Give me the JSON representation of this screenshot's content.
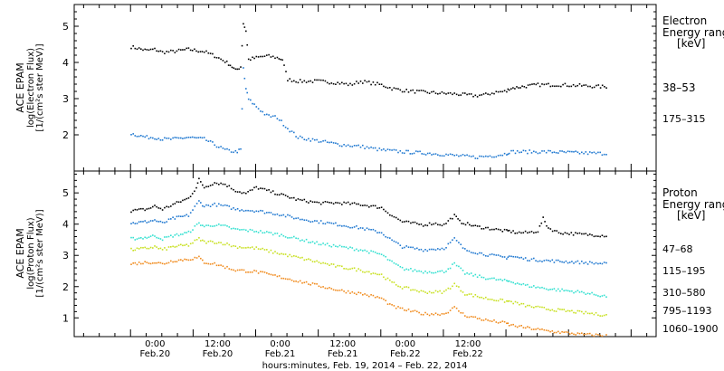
{
  "chart_data": [
    {
      "type": "scatter",
      "instrument": "ACE EPAM",
      "ylabel_line1": "log(Electron Flux)",
      "ylabel_line2": "[1/(cm²s ster MeV)]",
      "legend_title": "Electron",
      "legend_subtitle": "Energy range",
      "legend_units": "[keV]",
      "ylim": [
        1.0,
        5.6
      ],
      "yticks": [
        "2",
        "3",
        "4",
        "5"
      ],
      "series": [
        {
          "name": "38–53",
          "color": "#000000",
          "points": [
            [
              0.0,
              4.45
            ],
            [
              1.5,
              4.4
            ],
            [
              3.0,
              4.35
            ],
            [
              4.5,
              4.38
            ],
            [
              6.0,
              4.3
            ],
            [
              8.0,
              4.32
            ],
            [
              11.0,
              4.38
            ],
            [
              14.0,
              4.32
            ],
            [
              16.0,
              4.2
            ],
            [
              18.0,
              4.05
            ],
            [
              19.0,
              3.95
            ],
            [
              20.0,
              3.8
            ],
            [
              21.0,
              3.9
            ],
            [
              21.5,
              5.1
            ],
            [
              22.0,
              4.9
            ],
            [
              22.5,
              4.1
            ],
            [
              24.0,
              4.15
            ],
            [
              26.0,
              4.2
            ],
            [
              28.0,
              4.15
            ],
            [
              29.0,
              4.1
            ],
            [
              30.0,
              3.55
            ],
            [
              32.0,
              3.5
            ],
            [
              36.0,
              3.5
            ],
            [
              40.0,
              3.45
            ],
            [
              42.0,
              3.4
            ],
            [
              44.0,
              3.5
            ],
            [
              46.0,
              3.45
            ],
            [
              48.0,
              3.4
            ],
            [
              50.0,
              3.3
            ],
            [
              52.0,
              3.25
            ],
            [
              54.0,
              3.22
            ],
            [
              58.0,
              3.18
            ],
            [
              62.0,
              3.15
            ],
            [
              66.0,
              3.1
            ],
            [
              68.0,
              3.13
            ],
            [
              70.0,
              3.2
            ],
            [
              72.0,
              3.22
            ],
            [
              72.5,
              3.3
            ],
            [
              75.0,
              3.35
            ],
            [
              78.0,
              3.4
            ],
            [
              82.0,
              3.4
            ],
            [
              86.0,
              3.38
            ],
            [
              90.0,
              3.35
            ],
            [
              91.5,
              3.35
            ]
          ]
        },
        {
          "name": "175–315",
          "color": "#1f78d0",
          "points": [
            [
              0.0,
              2.05
            ],
            [
              1.5,
              2.0
            ],
            [
              3.0,
              1.95
            ],
            [
              4.5,
              1.95
            ],
            [
              6.0,
              1.9
            ],
            [
              8.0,
              1.9
            ],
            [
              11.0,
              1.95
            ],
            [
              14.0,
              1.9
            ],
            [
              16.0,
              1.75
            ],
            [
              18.0,
              1.6
            ],
            [
              20.0,
              1.55
            ],
            [
              21.0,
              1.6
            ],
            [
              21.5,
              3.85
            ],
            [
              22.0,
              3.3
            ],
            [
              22.5,
              3.0
            ],
            [
              24.0,
              2.8
            ],
            [
              26.0,
              2.55
            ],
            [
              28.0,
              2.5
            ],
            [
              30.0,
              2.2
            ],
            [
              32.0,
              1.95
            ],
            [
              36.0,
              1.85
            ],
            [
              40.0,
              1.75
            ],
            [
              44.0,
              1.7
            ],
            [
              48.0,
              1.6
            ],
            [
              52.0,
              1.55
            ],
            [
              58.0,
              1.5
            ],
            [
              62.0,
              1.45
            ],
            [
              66.0,
              1.4
            ],
            [
              70.0,
              1.45
            ],
            [
              72.0,
              1.5
            ],
            [
              72.5,
              1.55
            ],
            [
              76.0,
              1.55
            ],
            [
              80.0,
              1.55
            ],
            [
              86.0,
              1.52
            ],
            [
              91.5,
              1.5
            ]
          ]
        }
      ]
    },
    {
      "type": "scatter",
      "instrument": "ACE EPAM",
      "ylabel_line1": "log(Proton Flux)",
      "ylabel_line2": "[1/(cm²s ster MeV)]",
      "legend_title": "Proton",
      "legend_subtitle": "Energy range",
      "legend_units": "[keV]",
      "ylim": [
        0.4,
        5.7
      ],
      "yticks": [
        "1",
        "2",
        "3",
        "4",
        "5"
      ],
      "xticks": [
        {
          "time": "0:00",
          "date": "Feb.20"
        },
        {
          "time": "12:00",
          "date": "Feb.20"
        },
        {
          "time": "0:00",
          "date": "Feb.21"
        },
        {
          "time": "12:00",
          "date": "Feb.21"
        },
        {
          "time": "0:00",
          "date": "Feb.22"
        },
        {
          "time": "12:00",
          "date": "Feb.22"
        }
      ],
      "xlabel": "hours:minutes, Feb. 19, 2014 – Feb. 22, 2014",
      "series": [
        {
          "name": "47–68",
          "color": "#000000",
          "points": [
            [
              0.0,
              4.45
            ],
            [
              3.0,
              4.5
            ],
            [
              4.5,
              4.6
            ],
            [
              6.0,
              4.5
            ],
            [
              8.0,
              4.65
            ],
            [
              11.0,
              4.85
            ],
            [
              12.5,
              5.2
            ],
            [
              13.0,
              5.45
            ],
            [
              14.0,
              5.2
            ],
            [
              16.0,
              5.35
            ],
            [
              18.0,
              5.3
            ],
            [
              20.0,
              5.1
            ],
            [
              22.0,
              5.0
            ],
            [
              24.0,
              5.2
            ],
            [
              26.0,
              5.1
            ],
            [
              28.0,
              5.0
            ],
            [
              30.0,
              4.9
            ],
            [
              32.0,
              4.8
            ],
            [
              36.0,
              4.7
            ],
            [
              40.0,
              4.7
            ],
            [
              44.0,
              4.65
            ],
            [
              48.0,
              4.55
            ],
            [
              50.0,
              4.3
            ],
            [
              52.0,
              4.1
            ],
            [
              54.0,
              4.05
            ],
            [
              56.0,
              4.0
            ],
            [
              58.0,
              4.05
            ],
            [
              60.0,
              4.0
            ],
            [
              62.0,
              4.3
            ],
            [
              63.0,
              4.1
            ],
            [
              66.0,
              3.95
            ],
            [
              70.0,
              3.85
            ],
            [
              72.0,
              3.8
            ],
            [
              72.5,
              3.8
            ],
            [
              74.0,
              3.75
            ],
            [
              76.0,
              3.75
            ],
            [
              78.0,
              3.8
            ],
            [
              79.0,
              4.2
            ],
            [
              80.0,
              3.9
            ],
            [
              82.0,
              3.75
            ],
            [
              86.0,
              3.7
            ],
            [
              91.5,
              3.65
            ]
          ]
        },
        {
          "name": "115–195",
          "color": "#1f78d0",
          "points": [
            [
              0.0,
              4.05
            ],
            [
              3.0,
              4.1
            ],
            [
              4.5,
              4.15
            ],
            [
              6.0,
              4.05
            ],
            [
              8.0,
              4.2
            ],
            [
              11.0,
              4.3
            ],
            [
              13.0,
              4.75
            ],
            [
              14.0,
              4.6
            ],
            [
              16.0,
              4.65
            ],
            [
              18.0,
              4.6
            ],
            [
              20.0,
              4.5
            ],
            [
              24.0,
              4.45
            ],
            [
              28.0,
              4.35
            ],
            [
              32.0,
              4.2
            ],
            [
              36.0,
              4.1
            ],
            [
              40.0,
              4.0
            ],
            [
              44.0,
              3.9
            ],
            [
              48.0,
              3.75
            ],
            [
              50.0,
              3.5
            ],
            [
              52.0,
              3.3
            ],
            [
              56.0,
              3.2
            ],
            [
              60.0,
              3.25
            ],
            [
              62.0,
              3.55
            ],
            [
              64.0,
              3.2
            ],
            [
              68.0,
              3.05
            ],
            [
              72.0,
              2.95
            ],
            [
              72.5,
              3.0
            ],
            [
              76.0,
              2.9
            ],
            [
              80.0,
              2.85
            ],
            [
              86.0,
              2.8
            ],
            [
              91.5,
              2.75
            ]
          ]
        },
        {
          "name": "310–580",
          "color": "#33e0d0",
          "points": [
            [
              0.0,
              3.55
            ],
            [
              3.0,
              3.6
            ],
            [
              4.5,
              3.65
            ],
            [
              6.0,
              3.55
            ],
            [
              8.0,
              3.65
            ],
            [
              11.0,
              3.75
            ],
            [
              13.0,
              4.05
            ],
            [
              14.0,
              3.95
            ],
            [
              16.0,
              4.0
            ],
            [
              18.0,
              3.95
            ],
            [
              20.0,
              3.85
            ],
            [
              24.0,
              3.8
            ],
            [
              28.0,
              3.7
            ],
            [
              32.0,
              3.55
            ],
            [
              36.0,
              3.4
            ],
            [
              40.0,
              3.3
            ],
            [
              44.0,
              3.2
            ],
            [
              48.0,
              3.05
            ],
            [
              50.0,
              2.8
            ],
            [
              52.0,
              2.6
            ],
            [
              56.0,
              2.5
            ],
            [
              60.0,
              2.5
            ],
            [
              62.0,
              2.75
            ],
            [
              64.0,
              2.45
            ],
            [
              68.0,
              2.3
            ],
            [
              72.0,
              2.2
            ],
            [
              72.5,
              2.2
            ],
            [
              76.0,
              2.05
            ],
            [
              80.0,
              1.95
            ],
            [
              86.0,
              1.85
            ],
            [
              91.5,
              1.7
            ]
          ]
        },
        {
          "name": "795–1193",
          "color": "#c8e020",
          "points": [
            [
              0.0,
              3.2
            ],
            [
              3.0,
              3.25
            ],
            [
              4.5,
              3.3
            ],
            [
              6.0,
              3.2
            ],
            [
              8.0,
              3.3
            ],
            [
              11.0,
              3.35
            ],
            [
              13.0,
              3.55
            ],
            [
              14.0,
              3.45
            ],
            [
              16.0,
              3.45
            ],
            [
              18.0,
              3.4
            ],
            [
              20.0,
              3.3
            ],
            [
              24.0,
              3.25
            ],
            [
              28.0,
              3.1
            ],
            [
              32.0,
              2.95
            ],
            [
              36.0,
              2.8
            ],
            [
              40.0,
              2.65
            ],
            [
              44.0,
              2.55
            ],
            [
              48.0,
              2.4
            ],
            [
              50.0,
              2.15
            ],
            [
              52.0,
              2.0
            ],
            [
              56.0,
              1.85
            ],
            [
              60.0,
              1.85
            ],
            [
              62.0,
              2.1
            ],
            [
              64.0,
              1.8
            ],
            [
              68.0,
              1.65
            ],
            [
              72.0,
              1.55
            ],
            [
              72.5,
              1.55
            ],
            [
              76.0,
              1.4
            ],
            [
              80.0,
              1.3
            ],
            [
              86.0,
              1.2
            ],
            [
              91.5,
              1.1
            ]
          ]
        },
        {
          "name": "1060–1900",
          "color": "#f08a1c",
          "points": [
            [
              0.0,
              2.75
            ],
            [
              3.0,
              2.8
            ],
            [
              4.5,
              2.8
            ],
            [
              6.0,
              2.75
            ],
            [
              8.0,
              2.85
            ],
            [
              11.0,
              2.9
            ],
            [
              13.0,
              2.95
            ],
            [
              14.0,
              2.8
            ],
            [
              16.0,
              2.75
            ],
            [
              18.0,
              2.65
            ],
            [
              20.0,
              2.55
            ],
            [
              24.0,
              2.5
            ],
            [
              28.0,
              2.35
            ],
            [
              32.0,
              2.2
            ],
            [
              36.0,
              2.05
            ],
            [
              40.0,
              1.9
            ],
            [
              44.0,
              1.8
            ],
            [
              48.0,
              1.65
            ],
            [
              50.0,
              1.4
            ],
            [
              52.0,
              1.3
            ],
            [
              56.0,
              1.15
            ],
            [
              60.0,
              1.15
            ],
            [
              62.0,
              1.35
            ],
            [
              64.0,
              1.1
            ],
            [
              68.0,
              0.95
            ],
            [
              72.0,
              0.85
            ],
            [
              72.5,
              0.8
            ],
            [
              76.0,
              0.7
            ],
            [
              80.0,
              0.6
            ],
            [
              86.0,
              0.5
            ],
            [
              91.5,
              0.45
            ]
          ]
        }
      ]
    }
  ]
}
